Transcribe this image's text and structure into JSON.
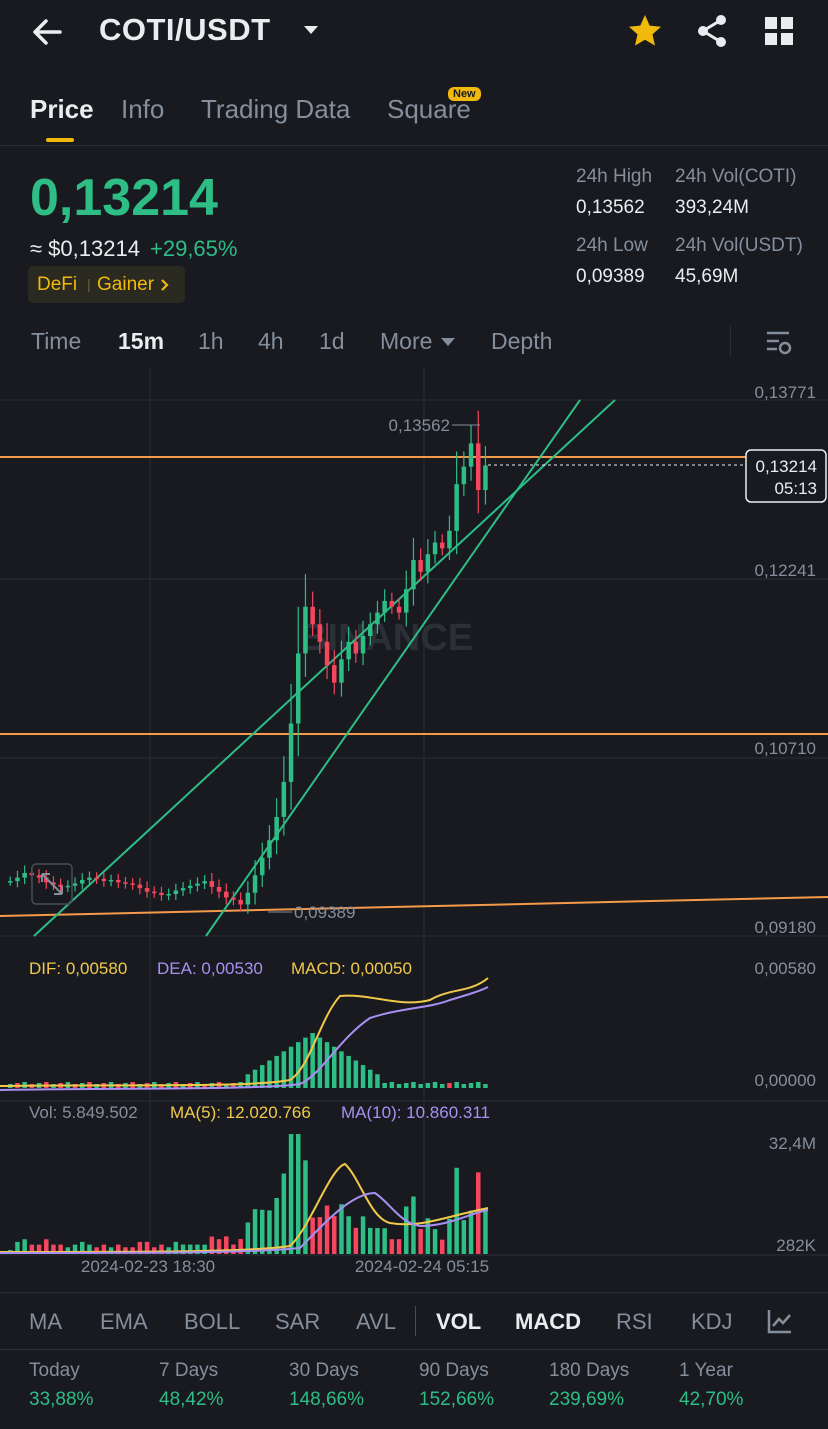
{
  "header": {
    "pair": "COTI/USDT",
    "icons": [
      "back-arrow-icon",
      "chevron-down-icon",
      "star-icon",
      "share-icon",
      "grid-icon"
    ],
    "star_color": "#f0b90b"
  },
  "tabs": [
    {
      "label": "Price",
      "active": true
    },
    {
      "label": "Info"
    },
    {
      "label": "Trading Data"
    },
    {
      "label": "Square",
      "badge": "New"
    }
  ],
  "ticker": {
    "last_price": "0,13214",
    "usd_price": "≈ $0,13214",
    "change": "+29,65%",
    "tags": [
      "DeFi",
      "Gainer"
    ],
    "high_24h_label": "24h High",
    "high_24h": "0,13562",
    "low_24h_label": "24h Low",
    "low_24h": "0,09389",
    "vol_coti_label": "24h Vol(COTI)",
    "vol_coti": "393,24M",
    "vol_usdt_label": "24h Vol(USDT)",
    "vol_usdt": "45,69M"
  },
  "timeframes": [
    "Time",
    "15m",
    "1h",
    "4h",
    "1d",
    "More",
    "Depth"
  ],
  "active_timeframe": "15m",
  "chart": {
    "watermark": "BINANCE",
    "price_axis": [
      "0,13771",
      "0,12241",
      "0,10710",
      "0,09180"
    ],
    "current_price": "0,13214",
    "countdown": "05:13",
    "high_marker": "0,13562",
    "low_marker": "0,09389",
    "macd": {
      "dif": "DIF: 0,00580",
      "dea": "DEA: 0,00530",
      "macd": "MACD: 0,00050",
      "axis_top": "0,00580",
      "axis_bottom": "0,00000"
    },
    "volume": {
      "vol": "Vol: 5.849.502",
      "ma5": "MA(5): 12.020.766",
      "ma10": "MA(10): 10.860.311",
      "axis_top": "32,4M",
      "axis_bottom": "282K"
    },
    "time_labels": [
      "2024-02-23 18:30",
      "2024-02-24 05:15"
    ],
    "colors": {
      "up": "#2ebd85",
      "down": "#f6465d",
      "line_orange": "#f59a4b",
      "trend_green": "#2ebd85",
      "dea": "#a98ff2",
      "dif": "#f0c94a"
    }
  },
  "chart_data": {
    "type": "candlestick",
    "close_series": [
      0.0965,
      0.0968,
      0.0972,
      0.097,
      0.0968,
      0.0964,
      0.0962,
      0.096,
      0.0961,
      0.0963,
      0.0966,
      0.0968,
      0.0967,
      0.0965,
      0.0966,
      0.0964,
      0.0963,
      0.0962,
      0.0959,
      0.0956,
      0.0955,
      0.0953,
      0.0954,
      0.0957,
      0.0959,
      0.0961,
      0.0963,
      0.0965,
      0.096,
      0.0956,
      0.0951,
      0.0949,
      0.0945,
      0.0955,
      0.097,
      0.0985,
      0.1,
      0.102,
      0.105,
      0.11,
      0.116,
      0.12,
      0.1185,
      0.117,
      0.115,
      0.1135,
      0.1155,
      0.117,
      0.116,
      0.1175,
      0.1185,
      0.1195,
      0.1205,
      0.12,
      0.1195,
      0.1215,
      0.124,
      0.123,
      0.1245,
      0.1255,
      0.125,
      0.1265,
      0.1305,
      0.132,
      0.134,
      0.13,
      0.1321
    ],
    "price_min": 0.0918,
    "price_max": 0.13771
  },
  "indicators": [
    "MA",
    "EMA",
    "BOLL",
    "SAR",
    "AVL",
    "VOL",
    "MACD",
    "RSI",
    "KDJ"
  ],
  "active_indicators": [
    "VOL",
    "MACD"
  ],
  "performance": [
    {
      "label": "Today",
      "value": "33,88%"
    },
    {
      "label": "7 Days",
      "value": "48,42%"
    },
    {
      "label": "30 Days",
      "value": "148,66%"
    },
    {
      "label": "90 Days",
      "value": "152,66%"
    },
    {
      "label": "180 Days",
      "value": "239,69%"
    },
    {
      "label": "1 Year",
      "value": "42,70%"
    }
  ]
}
